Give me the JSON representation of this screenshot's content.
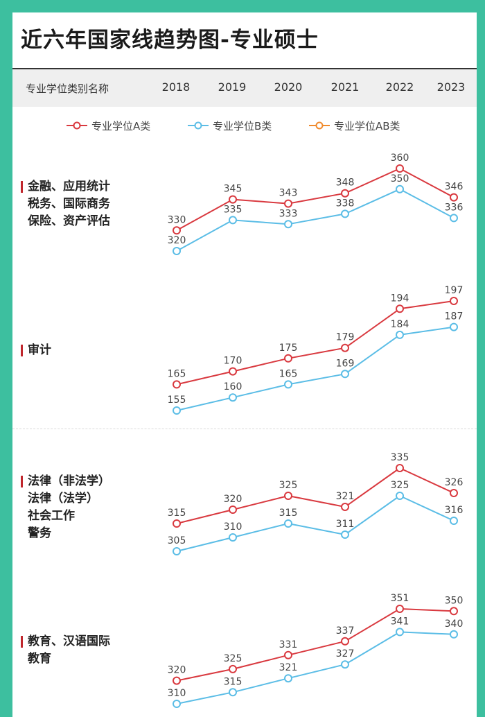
{
  "title": "近六年国家线趋势图-专业硕士",
  "header": {
    "label": "专业学位类别名称",
    "years": [
      "2018",
      "2019",
      "2020",
      "2021",
      "2022",
      "2023"
    ]
  },
  "legend": [
    {
      "name": "专业学位A类",
      "color": "#d9393f"
    },
    {
      "name": "专业学位B类",
      "color": "#5bbde6"
    },
    {
      "name": "专业学位AB类",
      "color": "#f08a2c"
    }
  ],
  "sections": [
    {
      "lines": [
        "金融、应用统计",
        "税务、国际商务",
        "保险、资产评估"
      ]
    },
    {
      "lines": [
        "审计"
      ]
    },
    {
      "lines": [
        "法律（非法学）",
        "法律（法学）",
        "社会工作",
        "警务"
      ]
    },
    {
      "lines": [
        "教育、汉语国际",
        "教育"
      ]
    }
  ],
  "chart_data": [
    {
      "type": "line",
      "categories": [
        "2018",
        "2019",
        "2020",
        "2021",
        "2022",
        "2023"
      ],
      "series": [
        {
          "name": "专业学位A类",
          "values": [
            330,
            345,
            343,
            348,
            360,
            346
          ]
        },
        {
          "name": "专业学位B类",
          "values": [
            320,
            335,
            333,
            338,
            350,
            336
          ]
        }
      ]
    },
    {
      "type": "line",
      "categories": [
        "2018",
        "2019",
        "2020",
        "2021",
        "2022",
        "2023"
      ],
      "series": [
        {
          "name": "专业学位A类",
          "values": [
            165,
            170,
            175,
            179,
            194,
            197
          ]
        },
        {
          "name": "专业学位B类",
          "values": [
            155,
            160,
            165,
            169,
            184,
            187
          ]
        }
      ]
    },
    {
      "type": "line",
      "categories": [
        "2018",
        "2019",
        "2020",
        "2021",
        "2022",
        "2023"
      ],
      "series": [
        {
          "name": "专业学位A类",
          "values": [
            315,
            320,
            325,
            321,
            335,
            326
          ]
        },
        {
          "name": "专业学位B类",
          "values": [
            305,
            310,
            315,
            311,
            325,
            316
          ]
        }
      ]
    },
    {
      "type": "line",
      "categories": [
        "2018",
        "2019",
        "2020",
        "2021",
        "2022",
        "2023"
      ],
      "series": [
        {
          "name": "专业学位A类",
          "values": [
            320,
            325,
            331,
            337,
            351,
            350
          ]
        },
        {
          "name": "专业学位B类",
          "values": [
            310,
            315,
            321,
            327,
            341,
            340
          ]
        }
      ]
    }
  ]
}
